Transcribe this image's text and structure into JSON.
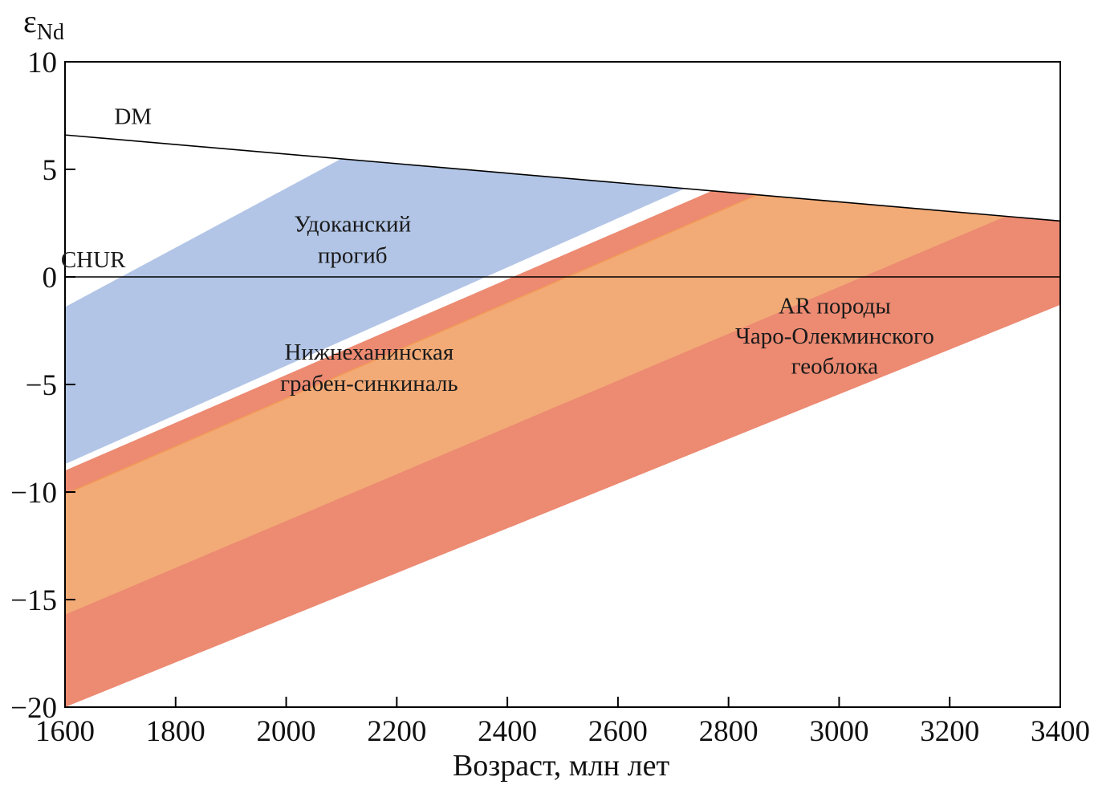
{
  "chart_data": {
    "type": "area",
    "xlabel": "Возраст, млн лет",
    "ylabel": {
      "main": "ε",
      "sub": "Nd"
    },
    "xlim": [
      1600,
      3400
    ],
    "ylim": [
      -20,
      10
    ],
    "xticks": [
      1600,
      1800,
      2000,
      2200,
      2400,
      2600,
      2800,
      3000,
      3200,
      3400
    ],
    "yticks": [
      10,
      5,
      0,
      -5,
      -10,
      -15,
      -20
    ],
    "ytick_labels": [
      "10",
      "5",
      "0",
      "−5",
      "−10",
      "−15",
      "−20"
    ],
    "grid": false,
    "reference_lines": [
      {
        "name": "DM",
        "points": [
          [
            1600,
            6.6
          ],
          [
            3400,
            2.6
          ]
        ],
        "color": "#000000"
      },
      {
        "name": "CHUR",
        "points": [
          [
            1600,
            0
          ],
          [
            3400,
            0
          ]
        ],
        "color": "#000000"
      }
    ],
    "series": [
      {
        "name": "AR породы Чаро-Олекминского геоблока",
        "color": "#ec8a72",
        "polygon": [
          [
            1600,
            -9
          ],
          [
            2770,
            4.0
          ],
          [
            3400,
            2.6
          ],
          [
            3400,
            -1.3
          ],
          [
            1600,
            -20
          ]
        ]
      },
      {
        "name": "Нижнеханинская грабен-синкиналь",
        "color": "#f2aa76",
        "edge_color": "#f39a55",
        "polygon": [
          [
            1600,
            -10.1
          ],
          [
            2850,
            3.8
          ],
          [
            3300,
            2.8
          ],
          [
            1600,
            -15.7
          ]
        ]
      },
      {
        "name": "Удоканский прогиб",
        "color": "#b2c5e6",
        "polygon": [
          [
            1600,
            -1.4
          ],
          [
            2100,
            5.5
          ],
          [
            2720,
            4.1
          ],
          [
            1600,
            -8.7
          ]
        ]
      }
    ],
    "annotations": [
      {
        "text": "Удоканский",
        "x": 2120,
        "y": 2.1
      },
      {
        "text": "прогиб",
        "x": 2120,
        "y": 0.65
      },
      {
        "text": "Нижнеханинская",
        "x": 2150,
        "y": -3.85
      },
      {
        "text": "грабен-синкиналь",
        "x": 2150,
        "y": -5.3
      },
      {
        "text": "AR породы",
        "x": 2992,
        "y": -1.7
      },
      {
        "text": "Чаро-Олекминского",
        "x": 2992,
        "y": -3.1
      },
      {
        "text": "геоблока",
        "x": 2992,
        "y": -4.5
      }
    ],
    "reference_labels": [
      {
        "text": "DM",
        "x": 1723,
        "y": 7.1
      },
      {
        "text": "CHUR",
        "x": 1651,
        "y": 0.45
      }
    ]
  }
}
